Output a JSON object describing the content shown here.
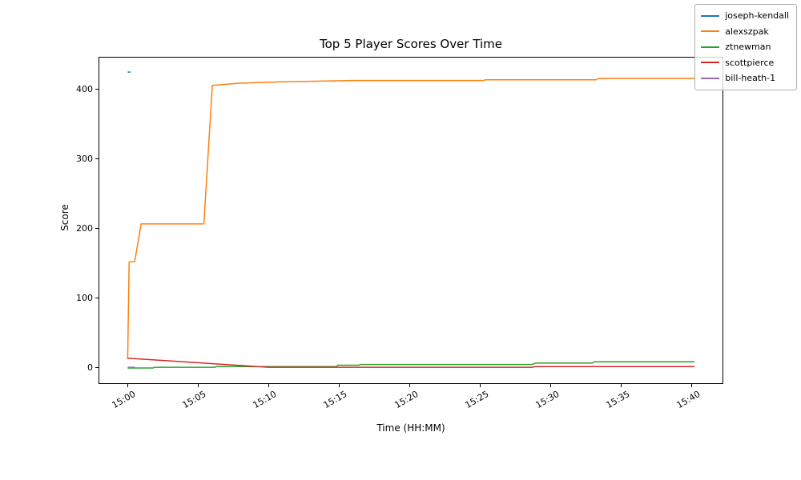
{
  "chart_data": {
    "type": "line",
    "title": "Top 5 Player Scores Over Time",
    "xlabel": "Time (HH:MM)",
    "ylabel": "Score",
    "grid": false,
    "legend_position": "upper right",
    "xlim": [
      -2.07,
      42.24
    ],
    "ylim": [
      -23,
      447
    ],
    "yticks": [
      0,
      100,
      200,
      300,
      400
    ],
    "xticks": [
      {
        "minute": 0,
        "label": "15:00"
      },
      {
        "minute": 5,
        "label": "15:05"
      },
      {
        "minute": 10,
        "label": "15:10"
      },
      {
        "minute": 15,
        "label": "15:15"
      },
      {
        "minute": 20,
        "label": "15:20"
      },
      {
        "minute": 25,
        "label": "15:25"
      },
      {
        "minute": 30,
        "label": "15:30"
      },
      {
        "minute": 35,
        "label": "15:35"
      },
      {
        "minute": 40,
        "label": "15:40"
      }
    ],
    "x_unit": "minutes after 15:00",
    "series": [
      {
        "name": "joseph-kendall",
        "color": "#1f77b4",
        "points": [
          [
            0,
            425
          ],
          [
            0.2,
            425
          ]
        ]
      },
      {
        "name": "alexszpak",
        "color": "#ff7f0e",
        "points": [
          [
            0,
            13
          ],
          [
            0.1,
            152
          ],
          [
            0.5,
            153
          ],
          [
            0.95,
            207
          ],
          [
            5.4,
            207
          ],
          [
            6.0,
            406
          ],
          [
            7.8,
            409
          ],
          [
            10.8,
            411
          ],
          [
            16,
            413
          ],
          [
            25.2,
            413
          ],
          [
            25.4,
            414
          ],
          [
            33.2,
            414
          ],
          [
            33.4,
            416
          ],
          [
            40.2,
            416
          ]
        ]
      },
      {
        "name": "ztnewman",
        "color": "#2ca02c",
        "points": [
          [
            0,
            0
          ],
          [
            1.8,
            0
          ],
          [
            1.9,
            1
          ],
          [
            6.2,
            1
          ],
          [
            6.3,
            2
          ],
          [
            14.8,
            2
          ],
          [
            14.9,
            4
          ],
          [
            16.4,
            4
          ],
          [
            16.5,
            5
          ],
          [
            28.7,
            5
          ],
          [
            28.9,
            7
          ],
          [
            32.9,
            7
          ],
          [
            33.1,
            9
          ],
          [
            40.2,
            9
          ]
        ]
      },
      {
        "name": "scottpierce",
        "color": "#d62728",
        "points": [
          [
            0,
            14
          ],
          [
            10,
            1
          ],
          [
            28.7,
            1
          ],
          [
            28.9,
            2
          ],
          [
            40.2,
            2
          ]
        ]
      },
      {
        "name": "bill-heath-1",
        "color": "#9467bd",
        "points": [
          [
            0,
            1
          ],
          [
            0.5,
            1
          ]
        ]
      }
    ]
  }
}
